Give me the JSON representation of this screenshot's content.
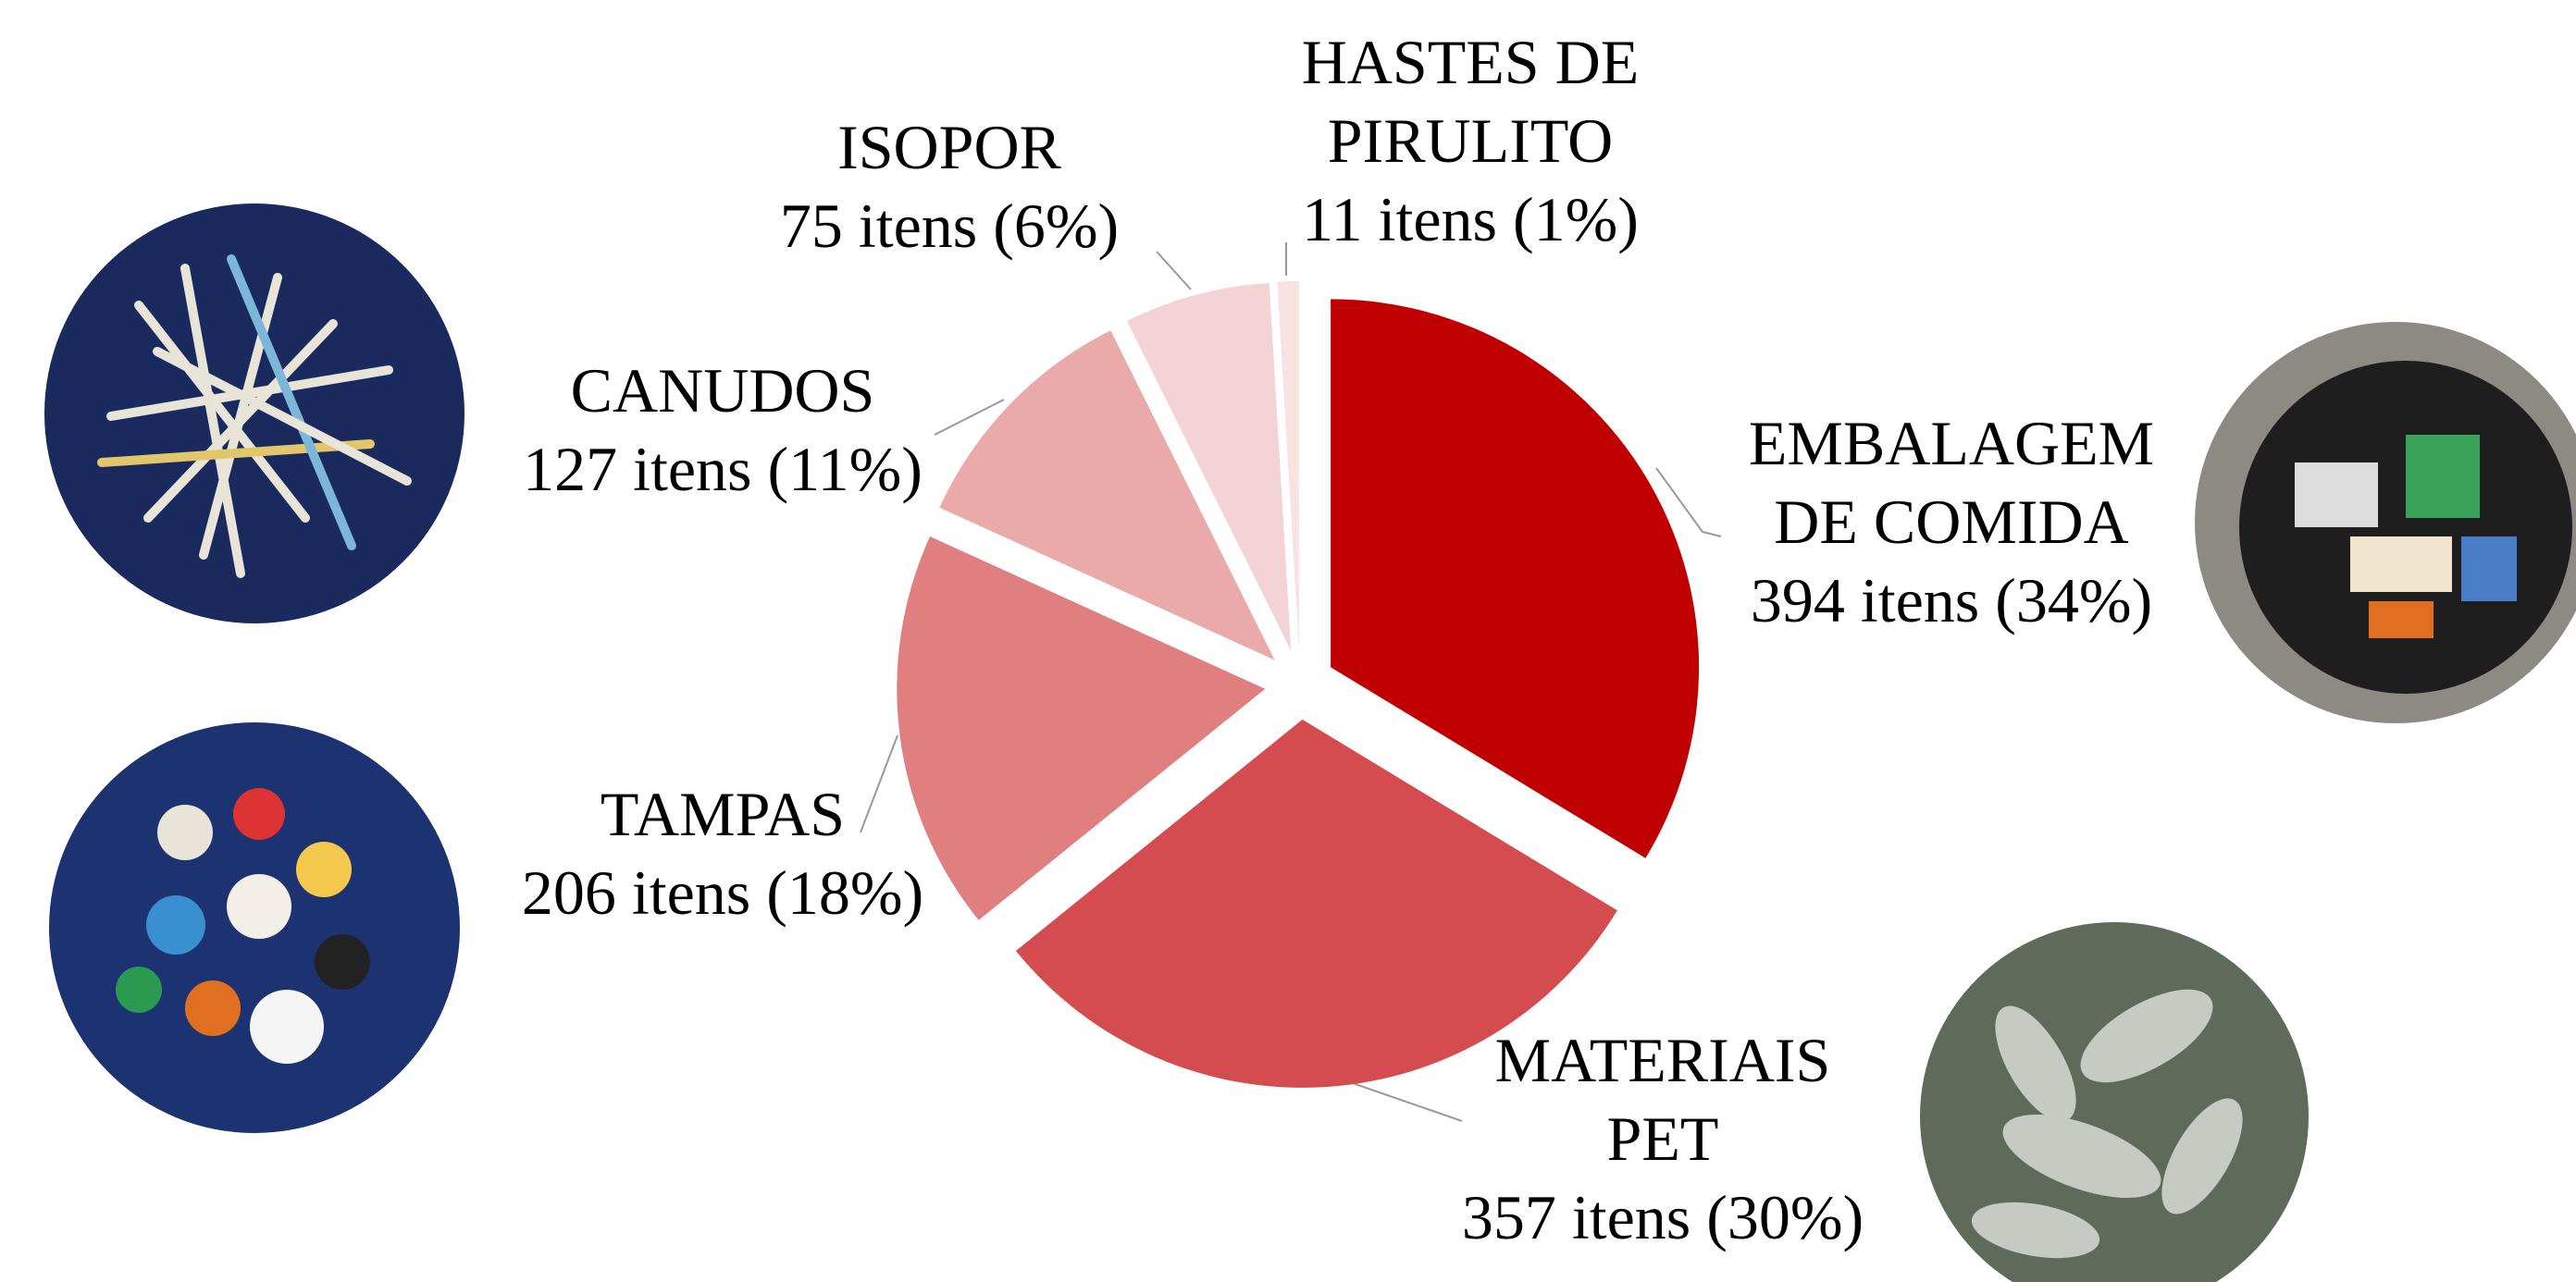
{
  "chart_data": {
    "type": "pie",
    "categories": [
      "EMBALAGEM DE COMIDA",
      "MATERIAIS PET",
      "TAMPAS",
      "CANUDOS",
      "ISOPOR",
      "HASTES DE PIRULITO"
    ],
    "values": [
      394,
      357,
      206,
      127,
      75,
      11
    ],
    "value_labels": [
      "394 itens (34%)",
      "357 itens (30%)",
      "206 itens (18%)",
      "127 itens (11%)",
      "75 itens (6%)",
      "11 itens (1%)"
    ],
    "colors": [
      "#c00000",
      "#d44c4f",
      "#e07f80",
      "#eaaaaa",
      "#f4d3d4",
      "#f8e2e2"
    ]
  }
}
